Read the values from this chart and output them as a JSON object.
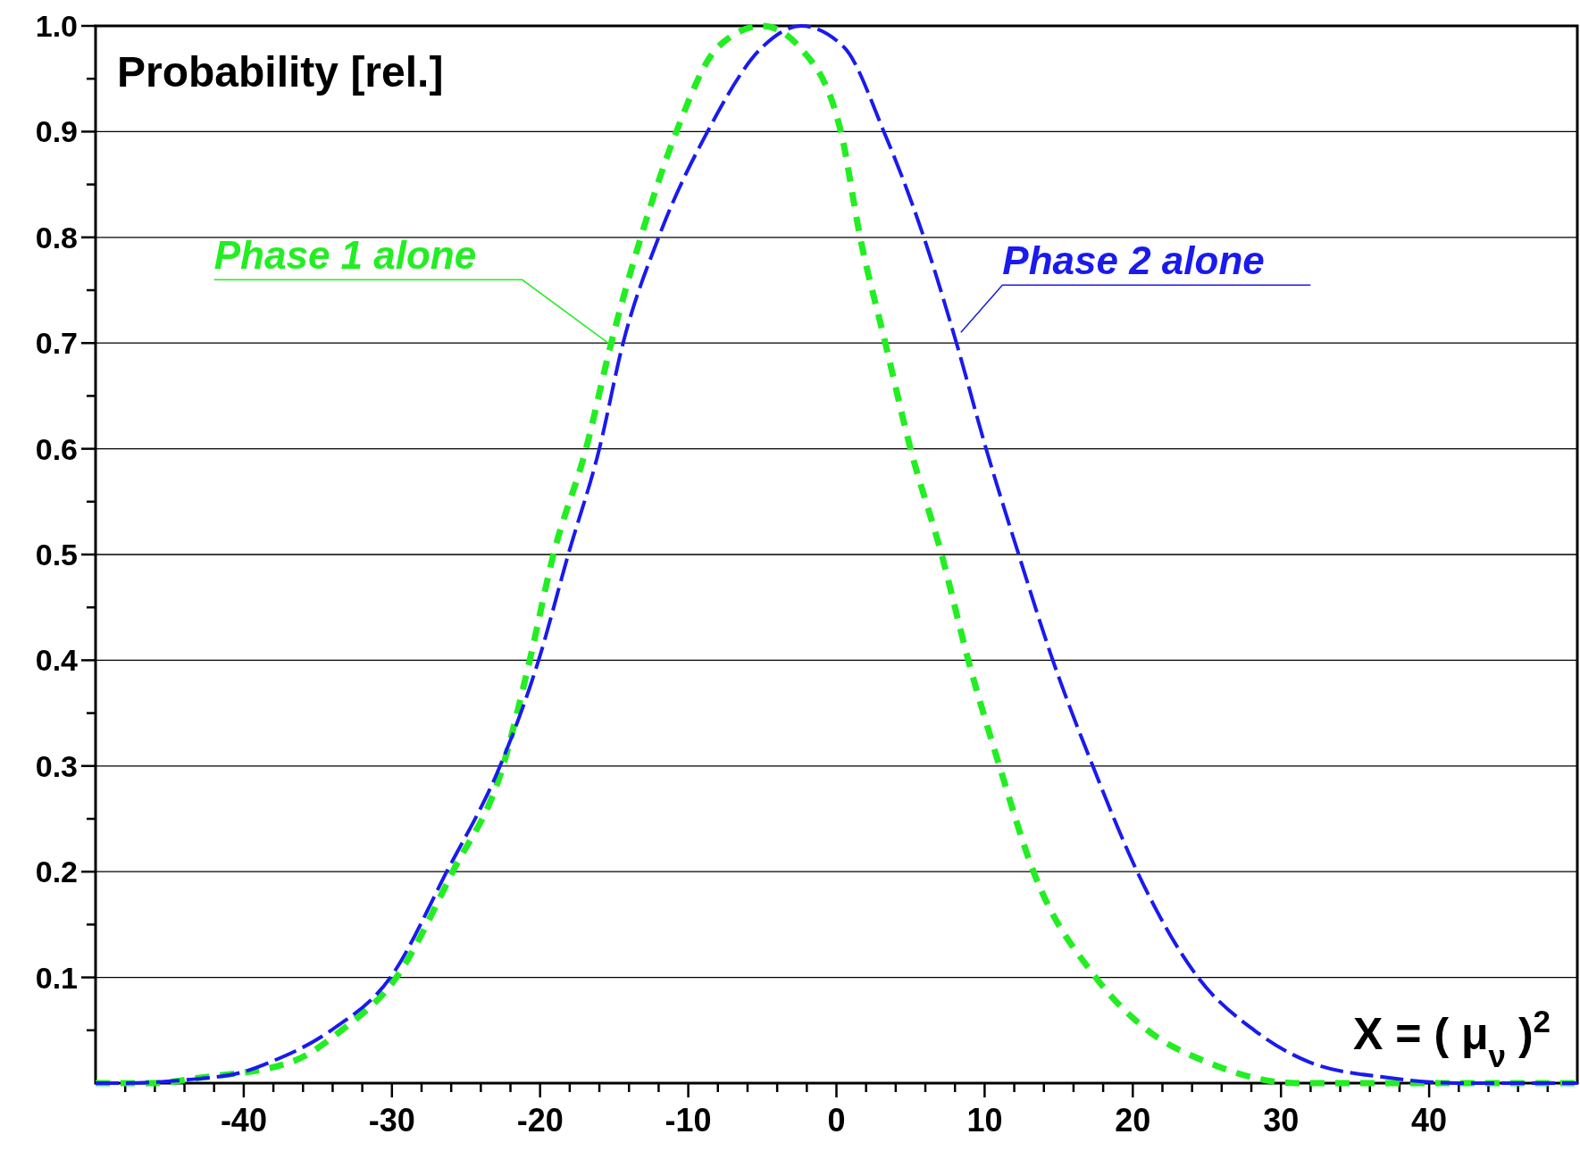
{
  "chart_data": {
    "type": "line",
    "xlabel": "X = ( μ$_{ν}$ )$^{2}$",
    "ylabel": "Probability [rel.]",
    "xlim": [
      -50,
      50
    ],
    "ylim": [
      0,
      1.0
    ],
    "xticks": [
      {
        "value": -48,
        "label": null
      },
      {
        "value": -46,
        "label": null
      },
      {
        "value": -44,
        "label": null
      },
      {
        "value": -42,
        "label": null
      },
      -40,
      {
        "value": -38,
        "label": null
      },
      {
        "value": -36,
        "label": null
      },
      {
        "value": -34,
        "label": null
      },
      {
        "value": -32,
        "label": null
      },
      -30,
      {
        "value": -28,
        "label": null
      },
      {
        "value": -26,
        "label": null
      },
      {
        "value": -24,
        "label": null
      },
      {
        "value": -22,
        "label": null
      },
      -20,
      {
        "value": -18,
        "label": null
      },
      {
        "value": -16,
        "label": null
      },
      {
        "value": -14,
        "label": null
      },
      {
        "value": -12,
        "label": null
      },
      -10,
      {
        "value": -8,
        "label": null
      },
      {
        "value": -6,
        "label": null
      },
      {
        "value": -4,
        "label": null
      },
      {
        "value": -2,
        "label": null
      },
      0,
      {
        "value": 2,
        "label": null
      },
      {
        "value": 4,
        "label": null
      },
      {
        "value": 6,
        "label": null
      },
      {
        "value": 8,
        "label": null
      },
      10,
      {
        "value": 12,
        "label": null
      },
      {
        "value": 14,
        "label": null
      },
      {
        "value": 16,
        "label": null
      },
      {
        "value": 18,
        "label": null
      },
      20,
      {
        "value": 22,
        "label": null
      },
      {
        "value": 24,
        "label": null
      },
      {
        "value": 26,
        "label": null
      },
      {
        "value": 28,
        "label": null
      },
      30,
      {
        "value": 32,
        "label": null
      },
      {
        "value": 34,
        "label": null
      },
      {
        "value": 36,
        "label": null
      },
      {
        "value": 38,
        "label": null
      },
      40,
      {
        "value": 42,
        "label": null
      },
      {
        "value": 44,
        "label": null
      },
      {
        "value": 46,
        "label": null
      },
      {
        "value": 48,
        "label": null
      }
    ],
    "yticks": [
      {
        "value": 0.05,
        "label": null
      },
      0.1,
      {
        "value": 0.15,
        "label": null
      },
      0.2,
      {
        "value": 0.25,
        "label": null
      },
      0.3,
      {
        "value": 0.35,
        "label": null
      },
      0.4,
      {
        "value": 0.45,
        "label": null
      },
      0.5,
      {
        "value": 0.55,
        "label": null
      },
      0.6,
      {
        "value": 0.65,
        "label": null
      },
      0.7,
      {
        "value": 0.75,
        "label": null
      },
      0.8,
      {
        "value": 0.85,
        "label": null
      },
      0.9,
      {
        "value": 0.95,
        "label": null
      },
      {
        "value": 1.0,
        "label": "1.0"
      }
    ],
    "grid": "y",
    "line_style": "dashed",
    "series": [
      {
        "name": "Phase 1 alone",
        "color": "#22ee22",
        "x": [
          -50,
          -46,
          -43,
          -36.8,
          -33.4,
          -29.7,
          -25.9,
          -22.5,
          -20.7,
          -19.1,
          -16.9,
          -15.2,
          -13.2,
          -10.8,
          -8,
          -5,
          -2.5,
          0.3,
          1.6,
          3.3,
          5,
          7.1,
          8.9,
          11,
          13.3,
          17.5,
          21,
          25,
          31,
          50
        ],
        "values": [
          0,
          0,
          0.005,
          0.02,
          0.05,
          0.1,
          0.2,
          0.3,
          0.4,
          0.5,
          0.6,
          0.7,
          0.8,
          0.9,
          0.98,
          1.0,
          0.98,
          0.9,
          0.8,
          0.7,
          0.6,
          0.5,
          0.4,
          0.3,
          0.2,
          0.1,
          0.05,
          0.02,
          0,
          0
        ]
      },
      {
        "name": "Phase 2 alone",
        "color": "#1a1aee",
        "x": [
          -50,
          -48,
          -44,
          -40.2,
          -38.2,
          -34.1,
          -30.1,
          -26.3,
          -22.7,
          -20.1,
          -18.1,
          -16,
          -14.4,
          -12,
          -8.7,
          -5,
          -2.4,
          0.5,
          3.2,
          5.9,
          8.1,
          10.1,
          12.3,
          14.6,
          17.3,
          20.3,
          24.4,
          28.2,
          31.9,
          37.3,
          42,
          50
        ],
        "values": [
          0,
          0,
          0.003,
          0.01,
          0.02,
          0.05,
          0.1,
          0.2,
          0.3,
          0.4,
          0.5,
          0.6,
          0.7,
          0.8,
          0.9,
          0.98,
          1.0,
          0.98,
          0.9,
          0.8,
          0.7,
          0.6,
          0.5,
          0.4,
          0.3,
          0.2,
          0.1,
          0.05,
          0.02,
          0.005,
          0,
          0
        ]
      }
    ]
  }
}
